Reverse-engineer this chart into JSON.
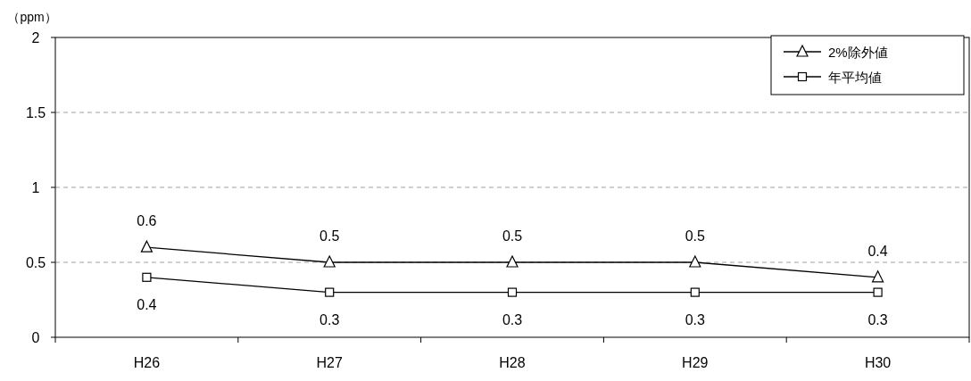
{
  "chart_data": {
    "type": "line",
    "ylabel": "（ppm）",
    "categories": [
      "H26",
      "H27",
      "H28",
      "H29",
      "H30"
    ],
    "series": [
      {
        "name": "2%除外値",
        "color": "#000000",
        "marker": "triangle",
        "values": [
          0.6,
          0.5,
          0.5,
          0.5,
          0.4
        ]
      },
      {
        "name": "年平均値",
        "color": "#000000",
        "marker": "square",
        "values": [
          0.4,
          0.3,
          0.3,
          0.3,
          0.3
        ]
      }
    ],
    "ylim": [
      0,
      2
    ],
    "yticks": [
      0,
      0.5,
      1,
      1.5,
      2
    ],
    "grid": "y",
    "legend": "top right",
    "data_labels": true
  }
}
